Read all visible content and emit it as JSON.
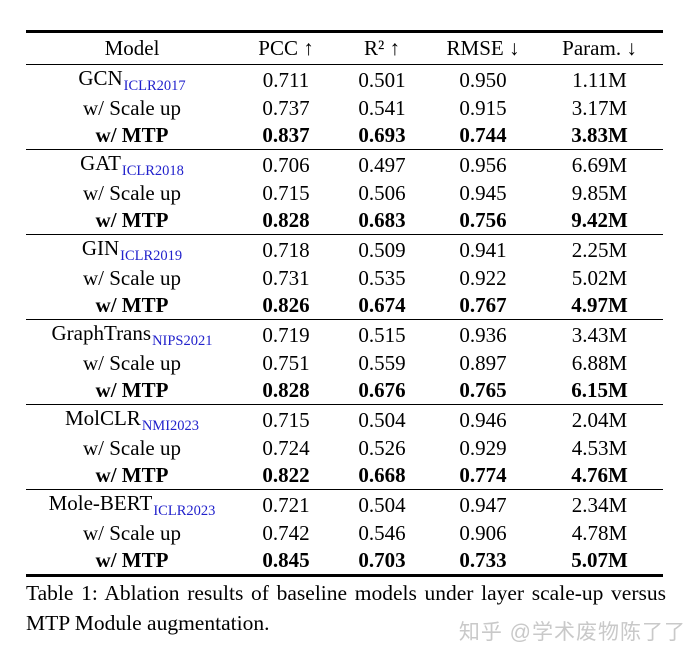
{
  "table": {
    "headers": [
      "Model",
      "PCC ↑",
      "R² ↑",
      "RMSE ↓",
      "Param. ↓"
    ],
    "groups": [
      {
        "rows": [
          {
            "label": "GCN",
            "venue": "ICLR2017",
            "bold": false,
            "values": [
              "0.711",
              "0.501",
              "0.950",
              "1.11M"
            ]
          },
          {
            "label": "w/ Scale up",
            "venue": "",
            "bold": false,
            "values": [
              "0.737",
              "0.541",
              "0.915",
              "3.17M"
            ]
          },
          {
            "label": "w/ MTP",
            "venue": "",
            "bold": true,
            "values": [
              "0.837",
              "0.693",
              "0.744",
              "3.83M"
            ]
          }
        ]
      },
      {
        "rows": [
          {
            "label": "GAT",
            "venue": "ICLR2018",
            "bold": false,
            "values": [
              "0.706",
              "0.497",
              "0.956",
              "6.69M"
            ]
          },
          {
            "label": "w/ Scale up",
            "venue": "",
            "bold": false,
            "values": [
              "0.715",
              "0.506",
              "0.945",
              "9.85M"
            ]
          },
          {
            "label": "w/ MTP",
            "venue": "",
            "bold": true,
            "values": [
              "0.828",
              "0.683",
              "0.756",
              "9.42M"
            ]
          }
        ]
      },
      {
        "rows": [
          {
            "label": "GIN",
            "venue": "ICLR2019",
            "bold": false,
            "values": [
              "0.718",
              "0.509",
              "0.941",
              "2.25M"
            ]
          },
          {
            "label": "w/ Scale up",
            "venue": "",
            "bold": false,
            "values": [
              "0.731",
              "0.535",
              "0.922",
              "5.02M"
            ]
          },
          {
            "label": "w/ MTP",
            "venue": "",
            "bold": true,
            "values": [
              "0.826",
              "0.674",
              "0.767",
              "4.97M"
            ]
          }
        ]
      },
      {
        "rows": [
          {
            "label": "GraphTrans",
            "venue": "NIPS2021",
            "bold": false,
            "values": [
              "0.719",
              "0.515",
              "0.936",
              "3.43M"
            ]
          },
          {
            "label": "w/ Scale up",
            "venue": "",
            "bold": false,
            "values": [
              "0.751",
              "0.559",
              "0.897",
              "6.88M"
            ]
          },
          {
            "label": "w/ MTP",
            "venue": "",
            "bold": true,
            "values": [
              "0.828",
              "0.676",
              "0.765",
              "6.15M"
            ]
          }
        ]
      },
      {
        "rows": [
          {
            "label": "MolCLR",
            "venue": "NMI2023",
            "bold": false,
            "values": [
              "0.715",
              "0.504",
              "0.946",
              "2.04M"
            ]
          },
          {
            "label": "w/ Scale up",
            "venue": "",
            "bold": false,
            "values": [
              "0.724",
              "0.526",
              "0.929",
              "4.53M"
            ]
          },
          {
            "label": "w/ MTP",
            "venue": "",
            "bold": true,
            "values": [
              "0.822",
              "0.668",
              "0.774",
              "4.76M"
            ]
          }
        ]
      },
      {
        "rows": [
          {
            "label": "Mole-BERT",
            "venue": "ICLR2023",
            "bold": false,
            "values": [
              "0.721",
              "0.504",
              "0.947",
              "2.34M"
            ]
          },
          {
            "label": "w/ Scale up",
            "venue": "",
            "bold": false,
            "values": [
              "0.742",
              "0.546",
              "0.906",
              "4.78M"
            ]
          },
          {
            "label": "w/ MTP",
            "venue": "",
            "bold": true,
            "values": [
              "0.845",
              "0.703",
              "0.733",
              "5.07M"
            ]
          }
        ]
      }
    ]
  },
  "caption": "Table 1:  Ablation results of baseline models under layer scale-up versus MTP Module augmentation.",
  "watermark": "知乎 @学术废物陈了了",
  "colors": {
    "venue_blue": "#2222cc",
    "watermark_gray": "#c9c9c9",
    "text_black": "#000000"
  }
}
